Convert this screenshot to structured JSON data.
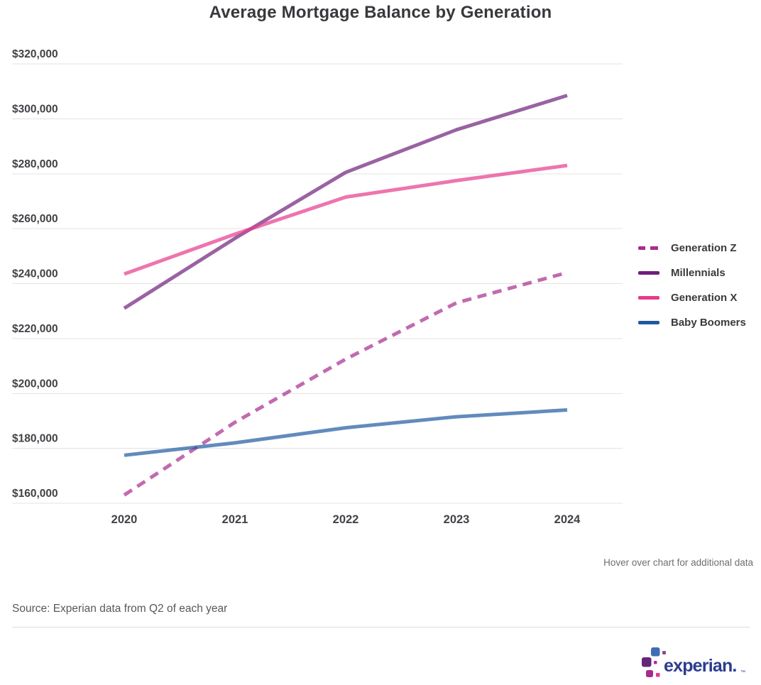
{
  "title": "Average Mortgage Balance by Generation",
  "hover_note": "Hover over chart for additional data",
  "source": "Source: Experian data from Q2 of each year",
  "logo": {
    "wordmark": "experian.",
    "trademark": "™",
    "wordmark_color": "#2b3c8f",
    "square_colors": [
      "#406eb3",
      "#8a4a97",
      "#632678",
      "#b02c8f",
      "#a62d87",
      "#e53a8d"
    ]
  },
  "chart_data": {
    "type": "line",
    "title": "Average Mortgage Balance by Generation",
    "xlabel": "",
    "ylabel": "",
    "x": [
      2020,
      2021,
      2022,
      2023,
      2024
    ],
    "xtick_labels": [
      "2020",
      "2021",
      "2022",
      "2023",
      "2024"
    ],
    "ylim": [
      160000,
      320000
    ],
    "ytick_step": 20000,
    "ytick_labels": [
      "$320,000",
      "$300,000",
      "$280,000",
      "$260,000",
      "$240,000",
      "$220,000",
      "$200,000",
      "$180,000",
      "$160,000"
    ],
    "grid": true,
    "legend_position": "right",
    "line_opacity": 0.7,
    "series": [
      {
        "name": "Generation Z",
        "style": "dashed",
        "color": "#a82b8e",
        "values": [
          163000,
          189500,
          212500,
          233000,
          244000
        ]
      },
      {
        "name": "Millennials",
        "style": "solid",
        "color": "#6f1f7c",
        "values": [
          231000,
          256500,
          280500,
          296000,
          308500
        ]
      },
      {
        "name": "Generation X",
        "style": "solid",
        "color": "#e53a8c",
        "values": [
          243500,
          258000,
          271500,
          277500,
          283000
        ]
      },
      {
        "name": "Baby Boomers",
        "style": "solid",
        "color": "#1f5aa0",
        "values": [
          177500,
          182000,
          187500,
          191500,
          194000
        ]
      }
    ]
  }
}
